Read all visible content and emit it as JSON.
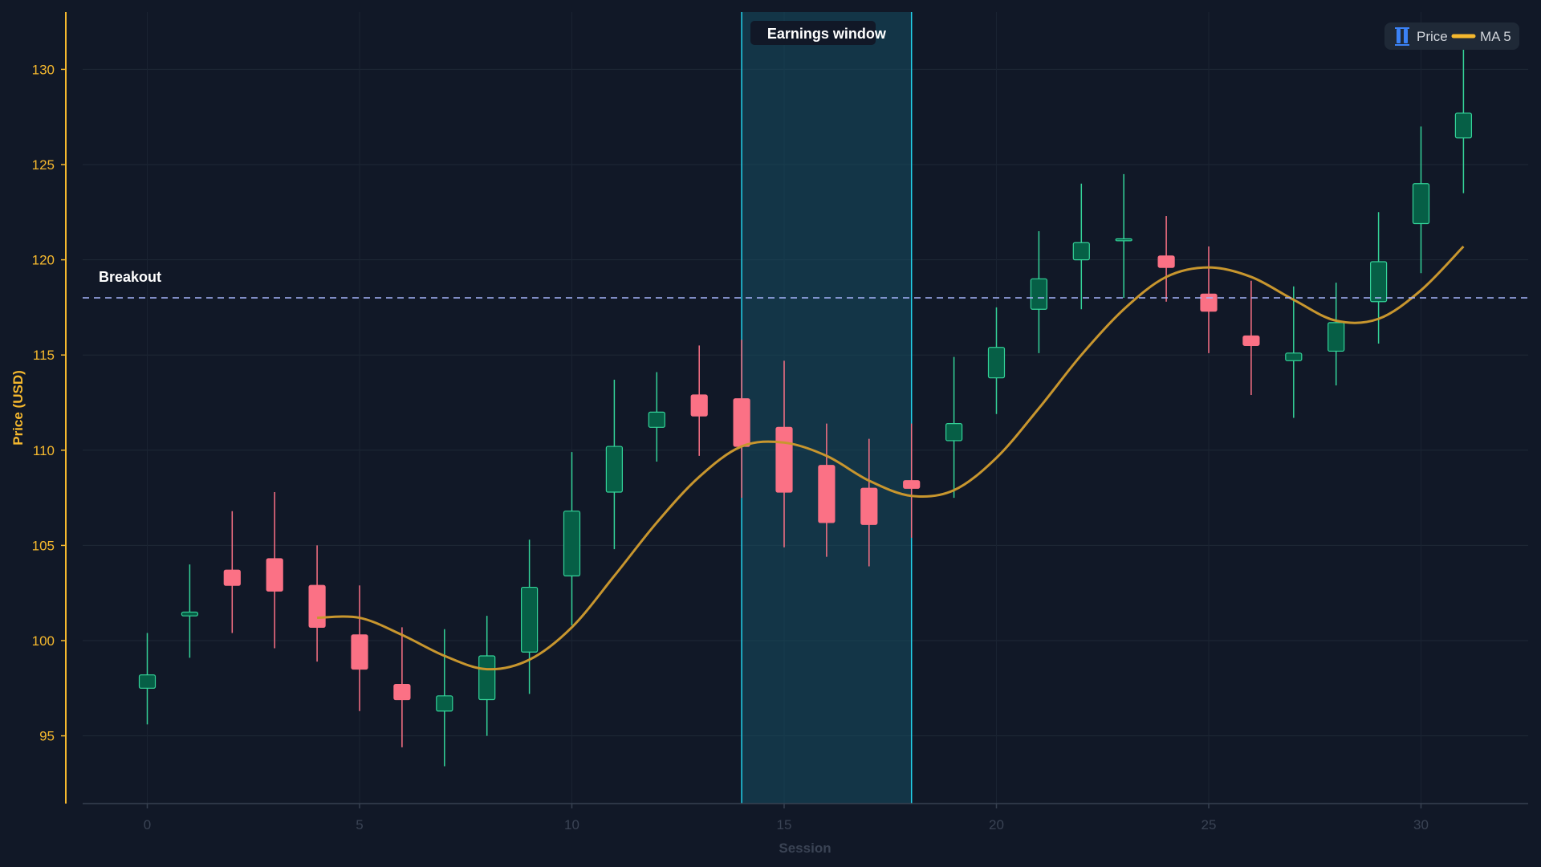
{
  "chart_data": {
    "type": "candlestick",
    "xlabel": "Session",
    "ylabel": "Price (USD)",
    "xlim": [
      -1.5,
      32.5
    ],
    "ylim": [
      91.5,
      133
    ],
    "x_ticks": [
      0,
      5,
      10,
      15,
      20,
      25,
      30
    ],
    "y_ticks": [
      95,
      100,
      105,
      110,
      115,
      120,
      125,
      130
    ],
    "grid": true,
    "legend_position": "top-right",
    "legend": [
      {
        "name": "Price",
        "icon": "candlestick-icon",
        "color": "#3b82f6"
      },
      {
        "name": "MA 5",
        "color": "#f5b82e"
      }
    ],
    "colors": {
      "up_body": "#065f46",
      "up_outline": "#34d399",
      "down_body": "#fb7185",
      "ma": "#c8962e",
      "band_fill": "#164e63",
      "band_edge": "#22d3ee",
      "hline": "#a5b4fc",
      "y_axis": "#f5b82e"
    },
    "candles": [
      {
        "x": 0,
        "open": 97.5,
        "high": 100.4,
        "low": 95.6,
        "close": 98.2
      },
      {
        "x": 1,
        "open": 101.3,
        "high": 104.0,
        "low": 99.1,
        "close": 101.5
      },
      {
        "x": 2,
        "open": 103.7,
        "high": 106.8,
        "low": 100.4,
        "close": 102.9
      },
      {
        "x": 3,
        "open": 104.3,
        "high": 107.8,
        "low": 99.6,
        "close": 102.6
      },
      {
        "x": 4,
        "open": 102.9,
        "high": 105.0,
        "low": 98.9,
        "close": 100.7
      },
      {
        "x": 5,
        "open": 100.3,
        "high": 102.9,
        "low": 96.3,
        "close": 98.5
      },
      {
        "x": 6,
        "open": 97.7,
        "high": 100.7,
        "low": 94.4,
        "close": 96.9
      },
      {
        "x": 7,
        "open": 96.3,
        "high": 100.6,
        "low": 93.4,
        "close": 97.1
      },
      {
        "x": 8,
        "open": 96.9,
        "high": 101.3,
        "low": 95.0,
        "close": 99.2
      },
      {
        "x": 9,
        "open": 99.4,
        "high": 105.3,
        "low": 97.2,
        "close": 102.8
      },
      {
        "x": 10,
        "open": 103.4,
        "high": 109.9,
        "low": 100.8,
        "close": 106.8
      },
      {
        "x": 11,
        "open": 107.8,
        "high": 113.7,
        "low": 104.8,
        "close": 110.2
      },
      {
        "x": 12,
        "open": 111.2,
        "high": 114.1,
        "low": 109.4,
        "close": 112.0
      },
      {
        "x": 13,
        "open": 112.9,
        "high": 115.5,
        "low": 109.7,
        "close": 111.8
      },
      {
        "x": 14,
        "open": 112.7,
        "high": 115.8,
        "low": 107.5,
        "close": 110.2
      },
      {
        "x": 15,
        "open": 111.2,
        "high": 114.7,
        "low": 104.9,
        "close": 107.8
      },
      {
        "x": 16,
        "open": 109.2,
        "high": 111.4,
        "low": 104.4,
        "close": 106.2
      },
      {
        "x": 17,
        "open": 108.0,
        "high": 110.6,
        "low": 103.9,
        "close": 106.1
      },
      {
        "x": 18,
        "open": 108.4,
        "high": 111.4,
        "low": 105.4,
        "close": 108.0
      },
      {
        "x": 19,
        "open": 110.5,
        "high": 114.9,
        "low": 107.5,
        "close": 111.4
      },
      {
        "x": 20,
        "open": 113.8,
        "high": 117.5,
        "low": 111.9,
        "close": 115.4
      },
      {
        "x": 21,
        "open": 117.4,
        "high": 121.5,
        "low": 115.1,
        "close": 119.0
      },
      {
        "x": 22,
        "open": 120.0,
        "high": 124.0,
        "low": 117.4,
        "close": 120.9
      },
      {
        "x": 23,
        "open": 121.0,
        "high": 124.5,
        "low": 118.0,
        "close": 121.1
      },
      {
        "x": 24,
        "open": 120.2,
        "high": 122.3,
        "low": 117.8,
        "close": 119.6
      },
      {
        "x": 25,
        "open": 118.2,
        "high": 120.7,
        "low": 115.1,
        "close": 117.3
      },
      {
        "x": 26,
        "open": 116.0,
        "high": 118.9,
        "low": 112.9,
        "close": 115.5
      },
      {
        "x": 27,
        "open": 114.7,
        "high": 118.6,
        "low": 111.7,
        "close": 115.1
      },
      {
        "x": 28,
        "open": 115.2,
        "high": 118.8,
        "low": 113.4,
        "close": 116.7
      },
      {
        "x": 29,
        "open": 117.8,
        "high": 122.5,
        "low": 115.6,
        "close": 119.9
      },
      {
        "x": 30,
        "open": 121.9,
        "high": 127.0,
        "low": 119.3,
        "close": 124.0
      },
      {
        "x": 31,
        "open": 126.4,
        "high": 131.2,
        "low": 123.5,
        "close": 127.7
      }
    ],
    "ma5": {
      "name": "MA 5",
      "x": [
        4,
        5,
        6,
        7,
        8,
        9,
        10,
        11,
        12,
        13,
        14,
        15,
        16,
        17,
        18,
        19,
        20,
        21,
        22,
        23,
        24,
        25,
        26,
        27,
        28,
        29,
        30,
        31
      ],
      "values": [
        101.2,
        101.2,
        100.3,
        99.2,
        98.5,
        99.0,
        100.7,
        103.4,
        106.2,
        108.6,
        110.2,
        110.4,
        109.7,
        108.4,
        107.6,
        107.9,
        109.6,
        112.2,
        115.0,
        117.4,
        119.1,
        119.6,
        119.1,
        117.9,
        116.8,
        116.9,
        118.4,
        120.7
      ]
    },
    "shaded_region": {
      "x_start": 14,
      "x_end": 18,
      "label": "Earnings window"
    },
    "hline": {
      "y": 118,
      "label": "Breakout"
    }
  }
}
